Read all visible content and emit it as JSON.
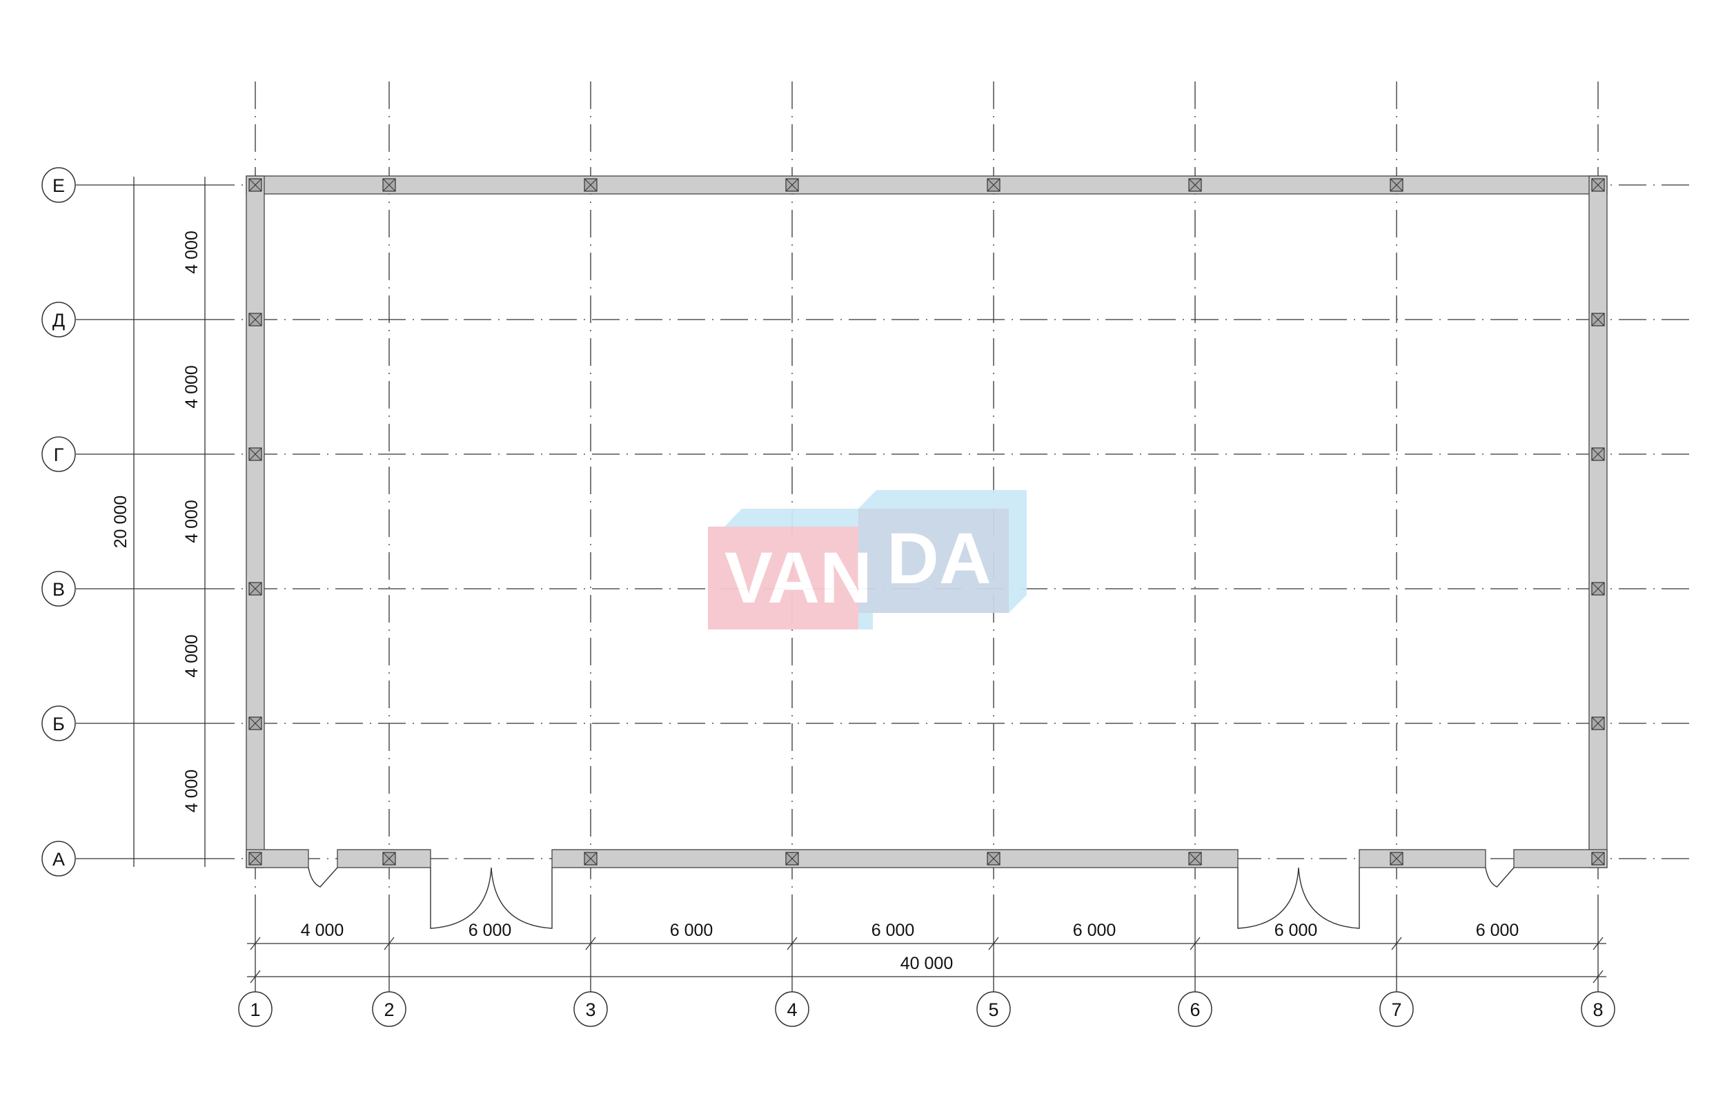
{
  "plan": {
    "column_axes": [
      "1",
      "2",
      "3",
      "4",
      "5",
      "6",
      "7",
      "8"
    ],
    "row_axes": [
      "Е",
      "Д",
      "Г",
      "В",
      "Б",
      "А"
    ],
    "horizontal_spans": [
      "4 000",
      "6 000",
      "6 000",
      "6 000",
      "6 000",
      "6 000",
      "6 000"
    ],
    "horizontal_total": "40 000",
    "vertical_spans": [
      "4 000",
      "4 000",
      "4 000",
      "4 000",
      "4 000"
    ],
    "vertical_total": "20 000"
  },
  "watermark": {
    "text_left": "VAN",
    "text_right": "DA",
    "colors": {
      "pink": "#f6c7cf",
      "blue": "#c9d6e6",
      "light_blue": "#cce9f6"
    }
  }
}
